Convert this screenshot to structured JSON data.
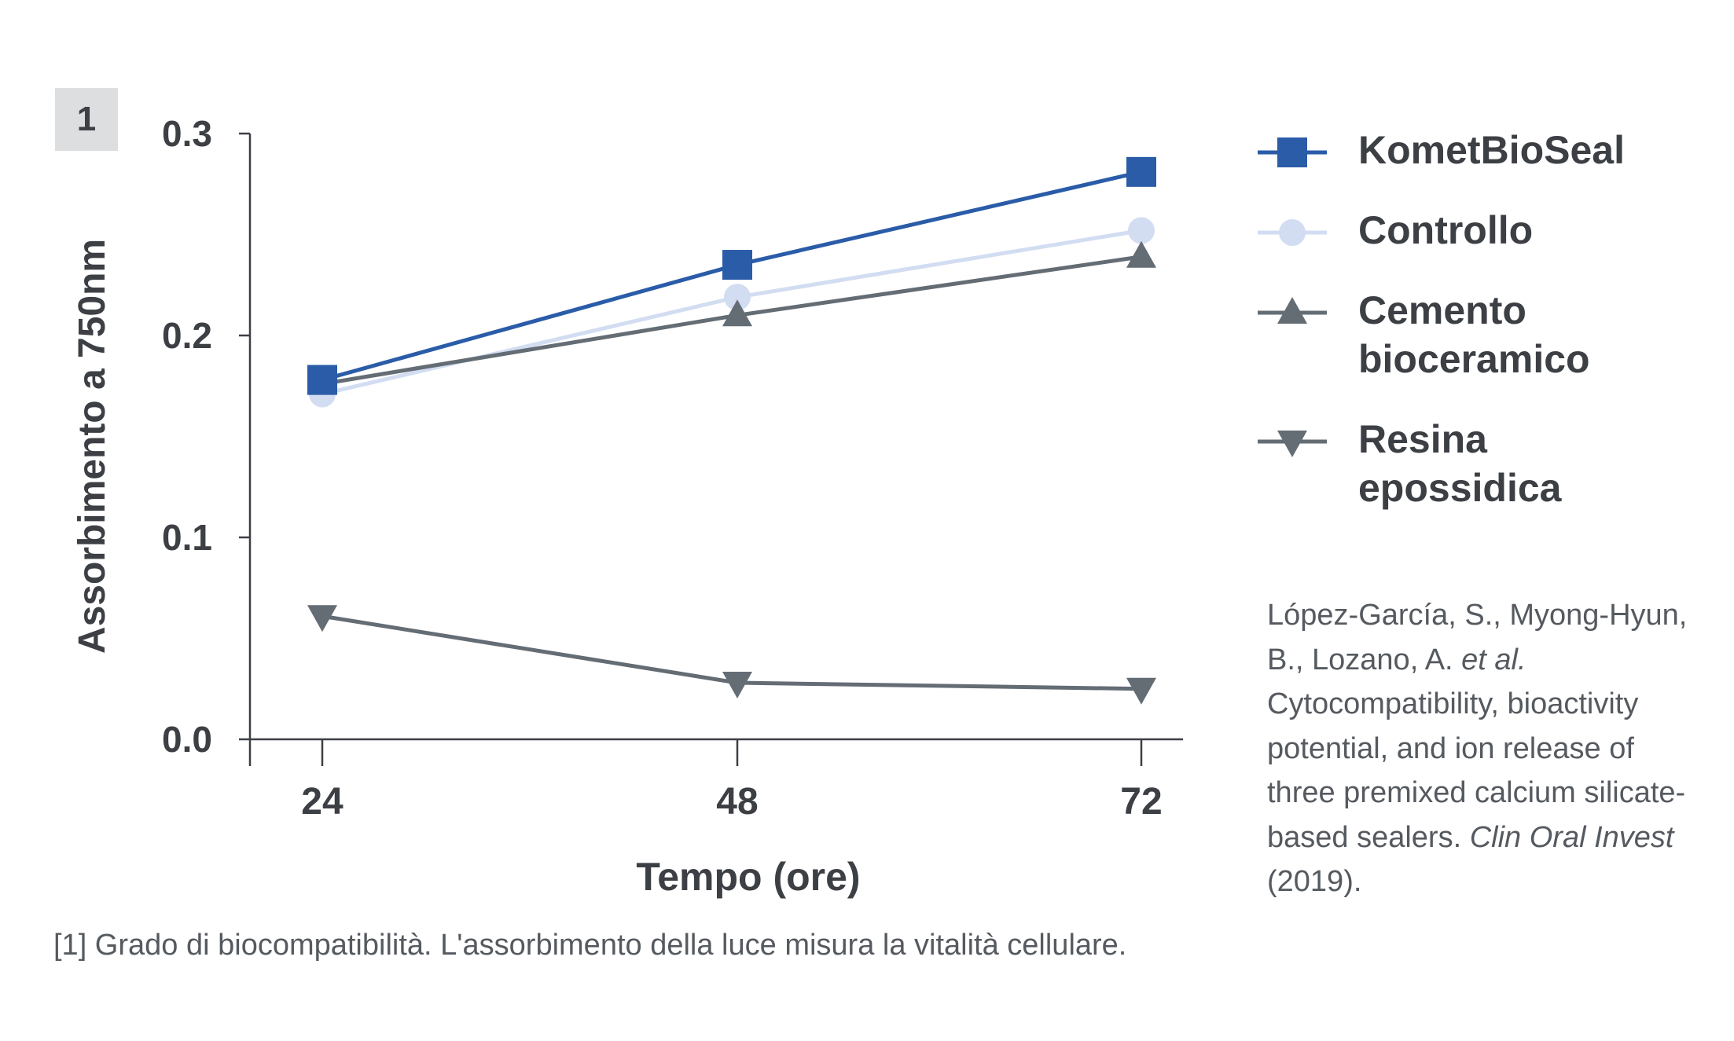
{
  "figure": {
    "number": "1",
    "caption": "[1] Grado di biocompatibilità. L'assorbimento della luce misura la vitalità cellulare."
  },
  "reference": {
    "authors": "López-García, S., Myong-Hyun, B., Lozano, A.",
    "etal": "et al.",
    "title": "Cytocompatibility, bioactivity potential, and ion release of three premixed calcium silicate-based sealers.",
    "journal": "Clin Oral Invest",
    "year": "(2019)."
  },
  "chart_data": {
    "type": "line",
    "x": [
      24,
      48,
      72
    ],
    "x_tick_labels": [
      "24",
      "48",
      "72"
    ],
    "xlabel": "Tempo (ore)",
    "ylabel": "Assorbimento a 750nm",
    "ylim": [
      0.0,
      0.3
    ],
    "y_ticks": [
      0.0,
      0.1,
      0.2,
      0.3
    ],
    "y_tick_labels": [
      "0.0",
      "0.1",
      "0.2",
      "0.3"
    ],
    "grid": false,
    "legend_position": "right",
    "series": [
      {
        "name": "KometBioSeal",
        "values": [
          0.178,
          0.235,
          0.281
        ],
        "color": "#2a5ca8",
        "marker": "square"
      },
      {
        "name": "Controllo",
        "values": [
          0.171,
          0.219,
          0.252
        ],
        "color": "#d2ddf2",
        "marker": "circle"
      },
      {
        "name": "Cemento\nbioceramico",
        "values": [
          0.176,
          0.21,
          0.239
        ],
        "color": "#646c74",
        "marker": "triangle-up"
      },
      {
        "name": "Resina\nepossidica",
        "values": [
          0.061,
          0.028,
          0.025
        ],
        "color": "#646c74",
        "marker": "triangle-down"
      }
    ]
  }
}
